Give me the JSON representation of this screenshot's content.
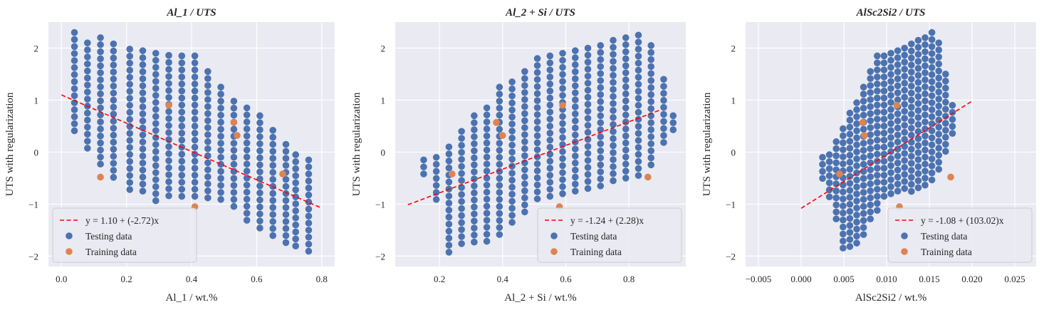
{
  "chart_data": [
    {
      "type": "scatter",
      "title": "Al_1 / UTS",
      "xlabel": "Al_1 / wt.%",
      "ylabel": "UTS with regularization",
      "xlim": [
        -0.04,
        0.84
      ],
      "ylim": [
        -2.2,
        2.5
      ],
      "xticks": [
        0.0,
        0.2,
        0.4,
        0.6,
        0.8
      ],
      "xtick_labels": [
        "0.0",
        "0.2",
        "0.4",
        "0.6",
        "0.8"
      ],
      "yticks": [
        -2,
        -1,
        0,
        1,
        2
      ],
      "ytick_labels": [
        "−2",
        "−1",
        "0",
        "1",
        "2"
      ],
      "grid": true,
      "legend_position": "lower-left",
      "fit_line": {
        "label": "y = 1.10 + (-2.72)x",
        "intercept": 1.1,
        "slope": -2.72,
        "x_range": [
          0.0,
          0.8
        ]
      },
      "series": [
        {
          "name": "Testing data",
          "color": "#4c72b0",
          "pattern": {
            "columns": [
              {
                "x": 0.04,
                "top": 2.3,
                "bottom": 0.3
              },
              {
                "x": 0.08,
                "top": 2.1,
                "bottom": 0.0
              },
              {
                "x": 0.12,
                "top": 2.2,
                "bottom": -0.3
              },
              {
                "x": 0.16,
                "top": 2.08,
                "bottom": -0.55
              },
              {
                "x": 0.21,
                "top": 1.98,
                "bottom": -0.78
              },
              {
                "x": 0.25,
                "top": 1.95,
                "bottom": -0.85
              },
              {
                "x": 0.29,
                "top": 1.9,
                "bottom": -0.95
              },
              {
                "x": 0.33,
                "top": 1.86,
                "bottom": -0.85
              },
              {
                "x": 0.37,
                "top": 1.85,
                "bottom": -0.85
              },
              {
                "x": 0.41,
                "top": 1.85,
                "bottom": -0.95
              },
              {
                "x": 0.45,
                "top": 1.55,
                "bottom": -0.98
              },
              {
                "x": 0.49,
                "top": 1.25,
                "bottom": -1.0
              },
              {
                "x": 0.53,
                "top": 0.98,
                "bottom": -1.1
              },
              {
                "x": 0.57,
                "top": 0.85,
                "bottom": -1.35
              },
              {
                "x": 0.61,
                "top": 0.7,
                "bottom": -1.55
              },
              {
                "x": 0.65,
                "top": 0.42,
                "bottom": -1.7
              },
              {
                "x": 0.69,
                "top": 0.15,
                "bottom": -1.85
              },
              {
                "x": 0.72,
                "top": -0.05,
                "bottom": -1.9
              },
              {
                "x": 0.76,
                "top": -0.15,
                "bottom": -1.95
              }
            ],
            "step": 0.135
          }
        },
        {
          "name": "Training data",
          "color": "#dd8452",
          "points": [
            [
              0.12,
              -0.48
            ],
            [
              0.33,
              0.9
            ],
            [
              0.41,
              -1.05
            ],
            [
              0.53,
              0.57
            ],
            [
              0.54,
              0.32
            ],
            [
              0.68,
              -0.42
            ]
          ]
        }
      ]
    },
    {
      "type": "scatter",
      "title": "Al_2 + Si / UTS",
      "xlabel": "Al_2 + Si / wt.%",
      "ylabel": "UTS with regularization",
      "xlim": [
        0.06,
        0.98
      ],
      "ylim": [
        -2.2,
        2.5
      ],
      "xticks": [
        0.2,
        0.4,
        0.6,
        0.8
      ],
      "xtick_labels": [
        "0.2",
        "0.4",
        "0.6",
        "0.8"
      ],
      "yticks": [
        -2,
        -1,
        0,
        1,
        2
      ],
      "ytick_labels": [
        "−2",
        "−1",
        "0",
        "1",
        "2"
      ],
      "grid": true,
      "legend_position": "lower-right",
      "fit_line": {
        "label": "y = -1.24 + (2.28)x",
        "intercept": -1.24,
        "slope": 2.28,
        "x_range": [
          0.1,
          0.9
        ]
      },
      "series": [
        {
          "name": "Testing data",
          "color": "#4c72b0",
          "pattern": {
            "columns": [
              {
                "x": 0.15,
                "top": -0.15,
                "bottom": -0.55
              },
              {
                "x": 0.19,
                "top": -0.1,
                "bottom": -0.95
              },
              {
                "x": 0.23,
                "top": 0.1,
                "bottom": -1.95
              },
              {
                "x": 0.27,
                "top": 0.4,
                "bottom": -1.88
              },
              {
                "x": 0.31,
                "top": 0.7,
                "bottom": -1.85
              },
              {
                "x": 0.35,
                "top": 0.85,
                "bottom": -1.8
              },
              {
                "x": 0.39,
                "top": 1.25,
                "bottom": -1.6
              },
              {
                "x": 0.43,
                "top": 1.35,
                "bottom": -1.45
              },
              {
                "x": 0.47,
                "top": 1.55,
                "bottom": -1.2
              },
              {
                "x": 0.51,
                "top": 1.8,
                "bottom": -0.95
              },
              {
                "x": 0.55,
                "top": 1.85,
                "bottom": -0.85
              },
              {
                "x": 0.59,
                "top": 1.9,
                "bottom": -0.85
              },
              {
                "x": 0.63,
                "top": 1.95,
                "bottom": -0.8
              },
              {
                "x": 0.67,
                "top": 2.0,
                "bottom": -0.8
              },
              {
                "x": 0.71,
                "top": 2.05,
                "bottom": -0.78
              },
              {
                "x": 0.75,
                "top": 2.15,
                "bottom": -0.68
              },
              {
                "x": 0.79,
                "top": 2.2,
                "bottom": -0.6
              },
              {
                "x": 0.83,
                "top": 2.25,
                "bottom": -0.55
              },
              {
                "x": 0.87,
                "top": 2.05,
                "bottom": -0.3
              },
              {
                "x": 0.91,
                "top": 1.4,
                "bottom": 0.1
              },
              {
                "x": 0.94,
                "top": 0.7,
                "bottom": 0.35
              }
            ],
            "step": 0.135
          }
        },
        {
          "name": "Training data",
          "color": "#dd8452",
          "points": [
            [
              0.24,
              -0.42
            ],
            [
              0.38,
              0.57
            ],
            [
              0.4,
              0.32
            ],
            [
              0.58,
              -1.05
            ],
            [
              0.59,
              0.9
            ],
            [
              0.86,
              -0.48
            ]
          ]
        }
      ]
    },
    {
      "type": "scatter",
      "title": "AlSc2Si2 / UTS",
      "xlabel": "AlSc2Si2 / wt.%",
      "ylabel": "UTS with regularization",
      "xlim": [
        -0.0065,
        0.0275
      ],
      "ylim": [
        -2.2,
        2.5
      ],
      "xticks": [
        -0.005,
        0.0,
        0.005,
        0.01,
        0.015,
        0.02,
        0.025
      ],
      "xtick_labels": [
        "−0.005",
        "0.000",
        "0.005",
        "0.010",
        "0.015",
        "0.020",
        "0.025"
      ],
      "yticks": [
        -2,
        -1,
        0,
        1,
        2
      ],
      "ytick_labels": [
        "−2",
        "−1",
        "0",
        "1",
        "2"
      ],
      "grid": true,
      "legend_position": "lower-right",
      "fit_line": {
        "label": "y = -1.08 + (103.02)x",
        "intercept": -1.08,
        "slope": 103.02,
        "x_range": [
          0.0,
          0.02
        ]
      },
      "series": [
        {
          "name": "Testing data",
          "color": "#4c72b0",
          "pattern": {
            "columns": [
              {
                "x": 0.0025,
                "top": -0.1,
                "bottom": -0.55
              },
              {
                "x": 0.0033,
                "top": -0.05,
                "bottom": -0.9
              },
              {
                "x": 0.0041,
                "top": 0.2,
                "bottom": -1.4
              },
              {
                "x": 0.0049,
                "top": 0.45,
                "bottom": -1.95
              },
              {
                "x": 0.0057,
                "top": 0.75,
                "bottom": -1.9
              },
              {
                "x": 0.0065,
                "top": 0.95,
                "bottom": -1.8
              },
              {
                "x": 0.0073,
                "top": 1.25,
                "bottom": -1.6
              },
              {
                "x": 0.0081,
                "top": 1.55,
                "bottom": -1.4
              },
              {
                "x": 0.0089,
                "top": 1.85,
                "bottom": -1.2
              },
              {
                "x": 0.0097,
                "top": 1.85,
                "bottom": -0.95
              },
              {
                "x": 0.0105,
                "top": 1.9,
                "bottom": -0.85
              },
              {
                "x": 0.0113,
                "top": 1.95,
                "bottom": -0.85
              },
              {
                "x": 0.0121,
                "top": 2.0,
                "bottom": -0.8
              },
              {
                "x": 0.0129,
                "top": 2.08,
                "bottom": -0.8
              },
              {
                "x": 0.0137,
                "top": 2.15,
                "bottom": -0.75
              },
              {
                "x": 0.0145,
                "top": 2.2,
                "bottom": -0.7
              },
              {
                "x": 0.0153,
                "top": 2.3,
                "bottom": -0.6
              },
              {
                "x": 0.0161,
                "top": 2.1,
                "bottom": -0.4
              },
              {
                "x": 0.0169,
                "top": 1.5,
                "bottom": -0.1
              },
              {
                "x": 0.0177,
                "top": 0.9,
                "bottom": 0.3
              }
            ],
            "step": 0.135
          }
        },
        {
          "name": "Training data",
          "color": "#dd8452",
          "points": [
            [
              0.0045,
              -0.42
            ],
            [
              0.0072,
              0.57
            ],
            [
              0.0074,
              0.32
            ],
            [
              0.0112,
              0.9
            ],
            [
              0.0115,
              -1.05
            ],
            [
              0.0175,
              -0.48
            ]
          ]
        }
      ]
    }
  ]
}
